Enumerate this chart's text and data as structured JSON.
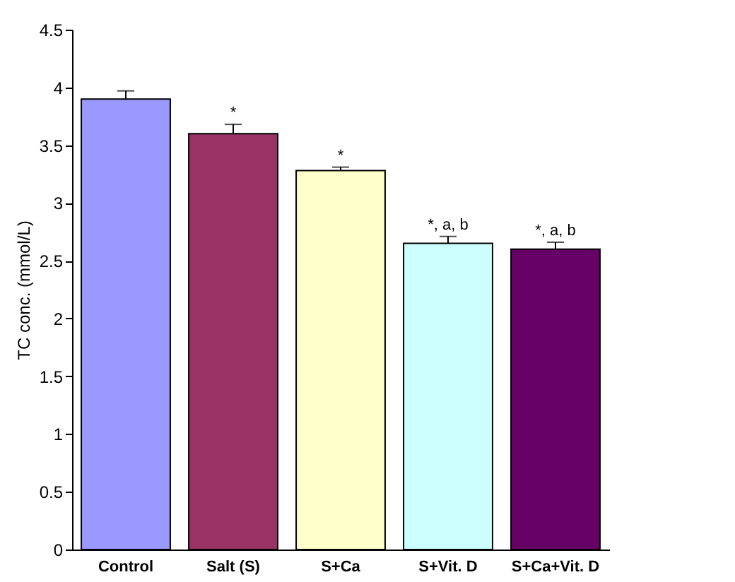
{
  "chart_data": {
    "type": "bar",
    "ylabel": "TC conc. (mmol/L)",
    "categories": [
      "Control",
      "Salt (S)",
      "S+Ca",
      "S+Vit. D",
      "S+Ca+Vit. D"
    ],
    "values": [
      3.9,
      3.6,
      3.28,
      2.65,
      2.6
    ],
    "errors": [
      0.07,
      0.08,
      0.03,
      0.06,
      0.06
    ],
    "colors": [
      "#9999ff",
      "#993366",
      "#ffffcc",
      "#ccffff",
      "#660066"
    ],
    "ylim": [
      0,
      4.5
    ],
    "yticks": [
      0,
      0.5,
      1,
      1.5,
      2,
      2.5,
      3,
      3.5,
      4,
      4.5
    ],
    "grid": false,
    "annotations": [
      {
        "text": "*",
        "x": "Salt (S)",
        "y": 3.68
      },
      {
        "text": "*",
        "x": "S+Ca",
        "y": 3.31
      },
      {
        "text": "*, a, b",
        "x": "S+Vit. D",
        "y": 2.71
      },
      {
        "text": "*, a, b",
        "x": "S+Ca+Vit. D",
        "y": 2.66
      }
    ]
  }
}
